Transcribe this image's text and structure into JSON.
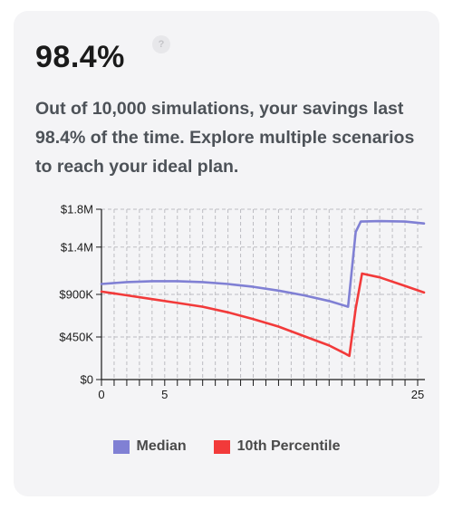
{
  "headline": "98.4%",
  "help_icon_glyph": "?",
  "description": "Out of 10,000 simulations, your savings last 98.4% of the time. Explore multiple scenarios to reach your ideal plan.",
  "chart_data": {
    "type": "line",
    "title": "",
    "xlabel": "",
    "ylabel": "",
    "xlim": [
      0,
      25
    ],
    "ylim": [
      0,
      1800000
    ],
    "grid": true,
    "legend_position": "bottom",
    "y_ticks": [
      {
        "value": 0,
        "label": "$0"
      },
      {
        "value": 450000,
        "label": "$450K"
      },
      {
        "value": 900000,
        "label": "$900K"
      },
      {
        "value": 1400000,
        "label": "$1.4M"
      },
      {
        "value": 1800000,
        "label": "$1.8M"
      }
    ],
    "x_tick_labels": [
      {
        "value": 0,
        "label": "0"
      },
      {
        "value": 5,
        "label": "5"
      },
      {
        "value": 25,
        "label": "25"
      }
    ],
    "x_minor_ticks": [
      0,
      1,
      2,
      3,
      4,
      5,
      6,
      7,
      8,
      9,
      10,
      11,
      12,
      13,
      14,
      15,
      16,
      17,
      18,
      19,
      20,
      21,
      22,
      23,
      24,
      25
    ],
    "series": [
      {
        "name": "Median",
        "color": "#8080d4",
        "points": [
          [
            0,
            1010000
          ],
          [
            2,
            1030000
          ],
          [
            4,
            1040000
          ],
          [
            6,
            1040000
          ],
          [
            8,
            1030000
          ],
          [
            10,
            1010000
          ],
          [
            12,
            980000
          ],
          [
            14,
            940000
          ],
          [
            16,
            890000
          ],
          [
            18,
            830000
          ],
          [
            19.5,
            770000
          ],
          [
            20.1,
            1560000
          ],
          [
            20.5,
            1670000
          ],
          [
            22,
            1675000
          ],
          [
            24,
            1670000
          ],
          [
            25.5,
            1650000
          ]
        ]
      },
      {
        "name": "10th Percentile",
        "color": "#f23a3a",
        "points": [
          [
            0,
            930000
          ],
          [
            2,
            890000
          ],
          [
            4,
            850000
          ],
          [
            6,
            810000
          ],
          [
            8,
            770000
          ],
          [
            10,
            710000
          ],
          [
            12,
            640000
          ],
          [
            14,
            560000
          ],
          [
            16,
            460000
          ],
          [
            18,
            360000
          ],
          [
            19.2,
            280000
          ],
          [
            19.6,
            250000
          ],
          [
            20.1,
            750000
          ],
          [
            20.6,
            1120000
          ],
          [
            22,
            1080000
          ],
          [
            24,
            990000
          ],
          [
            25.5,
            920000
          ]
        ]
      }
    ]
  }
}
